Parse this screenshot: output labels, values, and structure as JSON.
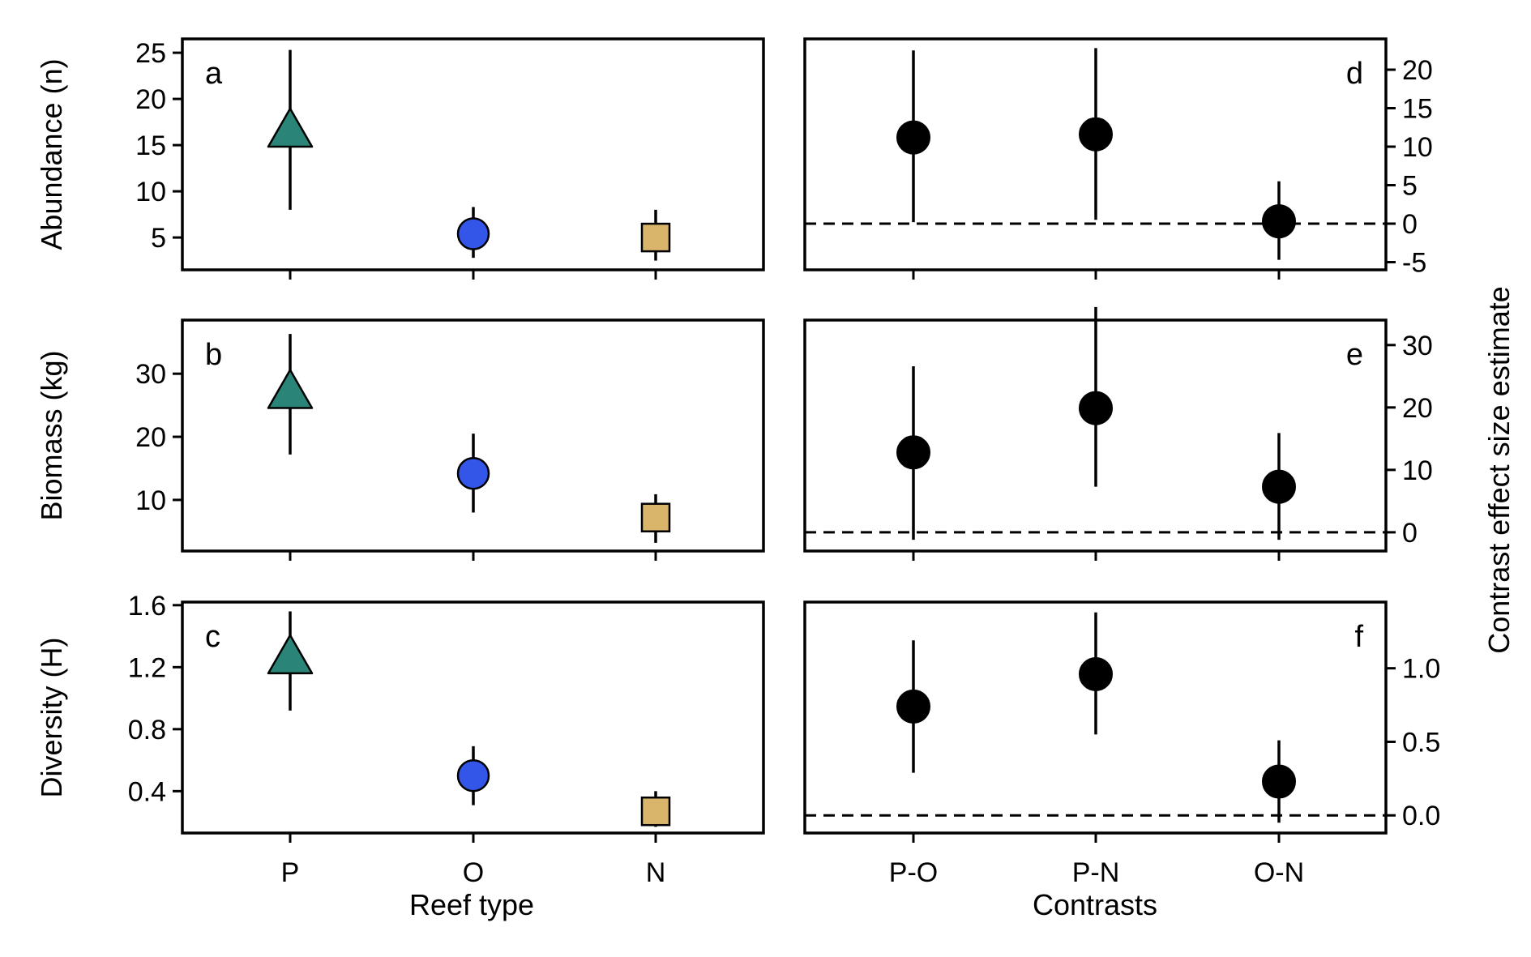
{
  "colors": {
    "P": "#2a8478",
    "O": "#3355e8",
    "N": "#d9b56c",
    "contrast": "#000000",
    "axis": "#000000",
    "zero_line": "#000000"
  },
  "labels": {
    "left_xlabel": "Reef type",
    "right_xlabel": "Contrasts",
    "right_ylabel": "Contrast effect size estimate"
  },
  "chart_data": [
    {
      "id": "a",
      "type": "scatter",
      "panel_label": "a",
      "ylabel": "Abundance (n)",
      "categories": [
        "P",
        "O",
        "N"
      ],
      "markers": [
        "triangle",
        "circle",
        "square"
      ],
      "values": [
        16.5,
        5.4,
        5.0
      ],
      "lower": [
        8.0,
        2.8,
        2.5
      ],
      "upper": [
        25.3,
        8.3,
        8.0
      ],
      "ylim": [
        1.5,
        26.5
      ],
      "yticks": [
        5,
        10,
        15,
        20,
        25
      ],
      "ytick_labels": [
        "5",
        "10",
        "15",
        "20",
        "25"
      ]
    },
    {
      "id": "b",
      "type": "scatter",
      "panel_label": "b",
      "ylabel": "Biomass (kg)",
      "categories": [
        "P",
        "O",
        "N"
      ],
      "markers": [
        "triangle",
        "circle",
        "square"
      ],
      "values": [
        27.0,
        14.2,
        7.2
      ],
      "lower": [
        17.2,
        8.0,
        3.2
      ],
      "upper": [
        36.3,
        20.5,
        10.9
      ],
      "ylim": [
        1.9,
        38.5
      ],
      "yticks": [
        10,
        20,
        30
      ],
      "ytick_labels": [
        "10",
        "20",
        "30"
      ]
    },
    {
      "id": "c",
      "type": "scatter",
      "panel_label": "c",
      "ylabel": "Diversity (H)",
      "categories": [
        "P",
        "O",
        "N"
      ],
      "markers": [
        "triangle",
        "circle",
        "square"
      ],
      "values": [
        1.26,
        0.5,
        0.27
      ],
      "lower": [
        0.92,
        0.31,
        0.17
      ],
      "upper": [
        1.56,
        0.69,
        0.4
      ],
      "ylim": [
        0.13,
        1.62
      ],
      "yticks": [
        0.4,
        0.8,
        1.2,
        1.6
      ],
      "ytick_labels": [
        "0.4",
        "0.8",
        "1.2",
        "1.6"
      ]
    },
    {
      "id": "d",
      "type": "scatter",
      "panel_label": "d",
      "categories": [
        "P-O",
        "P-N",
        "O-N"
      ],
      "values": [
        11.2,
        11.6,
        0.3
      ],
      "lower": [
        0.2,
        0.5,
        -4.7
      ],
      "upper": [
        22.5,
        22.8,
        5.5
      ],
      "zero_line": 0,
      "ylim": [
        -6.0,
        24.0
      ],
      "yticks": [
        -5,
        0,
        5,
        10,
        15,
        20
      ],
      "ytick_labels": [
        "-5",
        "0",
        "5",
        "10",
        "15",
        "20"
      ]
    },
    {
      "id": "e",
      "type": "scatter",
      "panel_label": "e",
      "categories": [
        "P-O",
        "P-N",
        "O-N"
      ],
      "values": [
        12.8,
        19.9,
        7.3
      ],
      "lower": [
        -1.2,
        7.3,
        -1.2
      ],
      "upper": [
        26.6,
        36.1,
        15.9
      ],
      "zero_line": 0,
      "ylim": [
        -3.0,
        34.0
      ],
      "yticks": [
        0,
        10,
        20,
        30
      ],
      "ytick_labels": [
        "0",
        "10",
        "20",
        "30"
      ]
    },
    {
      "id": "f",
      "type": "scatter",
      "panel_label": "f",
      "categories": [
        "P-O",
        "P-N",
        "O-N"
      ],
      "values": [
        0.74,
        0.96,
        0.23
      ],
      "lower": [
        0.29,
        0.55,
        -0.05
      ],
      "upper": [
        1.19,
        1.38,
        0.51
      ],
      "zero_line": 0,
      "ylim": [
        -0.12,
        1.45
      ],
      "yticks": [
        0.0,
        0.5,
        1.0
      ],
      "ytick_labels": [
        "0.0",
        "0.5",
        "1.0"
      ]
    }
  ]
}
